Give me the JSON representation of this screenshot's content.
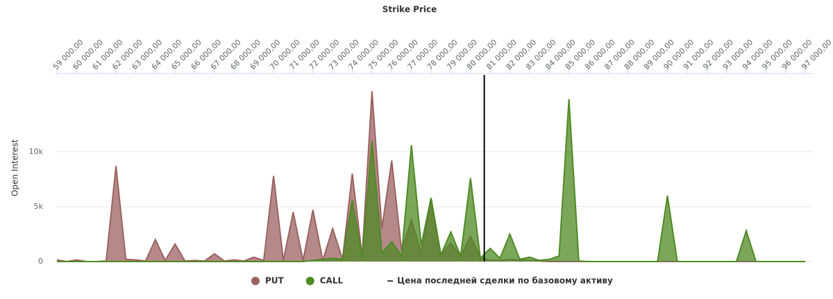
{
  "chart_data": {
    "type": "area",
    "title": "Strike Price",
    "y_label": "Open Interest",
    "x": [
      59000,
      59500,
      60000,
      60500,
      61000,
      61500,
      62000,
      62500,
      63000,
      63500,
      64000,
      64500,
      65000,
      65500,
      66000,
      66500,
      67000,
      67500,
      68000,
      68500,
      69000,
      69500,
      70000,
      70500,
      71000,
      71500,
      72000,
      72500,
      73000,
      73500,
      74000,
      74500,
      75000,
      75500,
      76000,
      76500,
      77000,
      77500,
      78000,
      78500,
      79000,
      79500,
      80000,
      80500,
      81000,
      81500,
      82000,
      82500,
      83000,
      83500,
      84000,
      84500,
      85000,
      85500,
      86000,
      86500,
      87000,
      87500,
      88000,
      88500,
      89000,
      89500,
      90000,
      90500,
      91000,
      91500,
      92000,
      92500,
      93000,
      93500,
      94000,
      94500,
      95000,
      95500,
      96000,
      96500,
      97000
    ],
    "series": [
      {
        "name": "PUT",
        "color": "#9c6262",
        "values": [
          150,
          0,
          150,
          0,
          0,
          50,
          8700,
          200,
          150,
          50,
          2000,
          100,
          1600,
          50,
          100,
          50,
          700,
          50,
          150,
          50,
          400,
          100,
          7800,
          100,
          4500,
          100,
          4700,
          100,
          3000,
          200,
          8000,
          500,
          15500,
          3000,
          9200,
          1000,
          3800,
          800,
          5500,
          600,
          1700,
          500,
          2300,
          400,
          100,
          100,
          200,
          100,
          100,
          50,
          0,
          0,
          0,
          0,
          0,
          0,
          0,
          0,
          0,
          0,
          0,
          0,
          0,
          0,
          0,
          0,
          0,
          0,
          0,
          0,
          0,
          0,
          0,
          0,
          0,
          0,
          0
        ]
      },
      {
        "name": "CALL",
        "color": "#4f8a24",
        "values": [
          0,
          0,
          0,
          0,
          0,
          0,
          0,
          0,
          0,
          0,
          0,
          0,
          0,
          0,
          0,
          0,
          0,
          0,
          0,
          0,
          0,
          0,
          0,
          0,
          0,
          0,
          100,
          200,
          300,
          200,
          5600,
          300,
          11000,
          800,
          1800,
          500,
          10600,
          1500,
          5800,
          600,
          2700,
          500,
          7600,
          300,
          1200,
          300,
          2500,
          200,
          400,
          100,
          200,
          500,
          14800,
          50,
          0,
          0,
          0,
          0,
          0,
          0,
          0,
          0,
          6000,
          0,
          0,
          0,
          0,
          0,
          0,
          0,
          2800,
          0,
          0,
          0,
          0,
          0,
          0
        ]
      }
    ],
    "reference_line": {
      "value": 80700,
      "label": "Цена последней сделки по базовому активу",
      "color": "#000000"
    },
    "xlim": [
      58930,
      97350
    ],
    "xticks": [
      {
        "value": 59000,
        "label": "59 000,00"
      },
      {
        "value": 60000,
        "label": "60 000,00"
      },
      {
        "value": 61000,
        "label": "61 000,00"
      },
      {
        "value": 62000,
        "label": "62 000,00"
      },
      {
        "value": 63000,
        "label": "63 000,00"
      },
      {
        "value": 64000,
        "label": "64 000,00"
      },
      {
        "value": 65000,
        "label": "65 000,00"
      },
      {
        "value": 66000,
        "label": "66 000,00"
      },
      {
        "value": 67000,
        "label": "67 000,00"
      },
      {
        "value": 68000,
        "label": "68 000,00"
      },
      {
        "value": 69000,
        "label": "69 000,00"
      },
      {
        "value": 70000,
        "label": "70 000,00"
      },
      {
        "value": 71000,
        "label": "71 000,00"
      },
      {
        "value": 72000,
        "label": "72 000,00"
      },
      {
        "value": 73000,
        "label": "73 000,00"
      },
      {
        "value": 74000,
        "label": "74 000,00"
      },
      {
        "value": 75000,
        "label": "75 000,00"
      },
      {
        "value": 76000,
        "label": "76 000,00"
      },
      {
        "value": 77000,
        "label": "77 000,00"
      },
      {
        "value": 78000,
        "label": "78 000,00"
      },
      {
        "value": 79000,
        "label": "79 000,00"
      },
      {
        "value": 80000,
        "label": "80 000,00"
      },
      {
        "value": 81000,
        "label": "81 000,00"
      },
      {
        "value": 82000,
        "label": "82 000,00"
      },
      {
        "value": 83000,
        "label": "83 000,00"
      },
      {
        "value": 84000,
        "label": "84 000,00"
      },
      {
        "value": 85000,
        "label": "85 000,00"
      },
      {
        "value": 86000,
        "label": "86 000,00"
      },
      {
        "value": 87000,
        "label": "87 000,00"
      },
      {
        "value": 88000,
        "label": "88 000,00"
      },
      {
        "value": 89000,
        "label": "89 000,00"
      },
      {
        "value": 90000,
        "label": "90 000,00"
      },
      {
        "value": 91000,
        "label": "91 000,00"
      },
      {
        "value": 92000,
        "label": "92 000,00"
      },
      {
        "value": 93000,
        "label": "93 000,00"
      },
      {
        "value": 94000,
        "label": "94 000,00"
      },
      {
        "value": 95000,
        "label": "95 000,00"
      },
      {
        "value": 96000,
        "label": "96 000,00"
      },
      {
        "value": 97000,
        "label": "97 000,00"
      }
    ],
    "ylim": [
      0,
      17000
    ],
    "yticks": [
      0,
      {
        "value": 5000,
        "label": "5k"
      },
      {
        "value": 10000,
        "label": "10k"
      }
    ],
    "grid": true
  }
}
